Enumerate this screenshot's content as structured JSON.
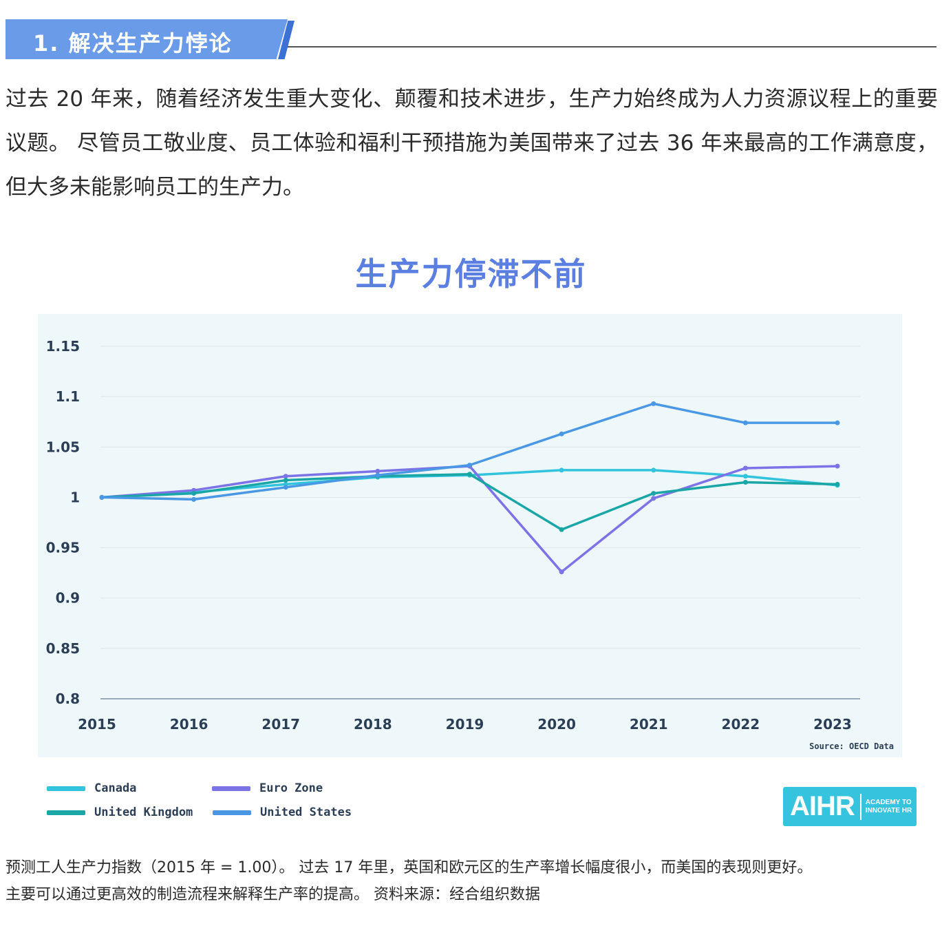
{
  "section": {
    "title": "1. 解决生产力悖论"
  },
  "intro": {
    "text": "过去 20 年来，随着经济发生重大变化、颠覆和技术进步，生产力始终成为人力资源议程上的重要议题。 尽管员工敬业度、员工体验和福利干预措施为美国带来了过去 36 年来最高的工作满意度，但大多未能影响员工的生产力。"
  },
  "chart_data": {
    "type": "line",
    "title": "生产力停滞不前",
    "source": "Source: OECD Data",
    "x": [
      "2015",
      "2016",
      "2017",
      "2018",
      "2019",
      "2020",
      "2021",
      "2022",
      "2023"
    ],
    "yticks": [
      "1.15",
      "1.1",
      "1.05",
      "1",
      "0.95",
      "0.9",
      "0.85",
      "0.8"
    ],
    "ylim": [
      0.8,
      1.15
    ],
    "grid": true,
    "legend_position": "bottom-left",
    "series": [
      {
        "name": "Canada",
        "color": "#33c4dd",
        "values": [
          1.0,
          1.005,
          1.013,
          1.02,
          1.022,
          1.027,
          1.027,
          1.021,
          1.012
        ]
      },
      {
        "name": "Euro Zone",
        "color": "#7b73e6",
        "values": [
          1.0,
          1.007,
          1.021,
          1.026,
          1.031,
          0.926,
          0.999,
          1.029,
          1.031
        ]
      },
      {
        "name": "United Kingdom",
        "color": "#1ba6a6",
        "values": [
          1.0,
          1.004,
          1.017,
          1.021,
          1.023,
          0.968,
          1.004,
          1.015,
          1.013
        ]
      },
      {
        "name": "United States",
        "color": "#4a98e4",
        "values": [
          1.0,
          0.998,
          1.01,
          1.022,
          1.032,
          1.063,
          1.093,
          1.074,
          1.074
        ]
      }
    ]
  },
  "legend": {
    "items": [
      {
        "label": "Canada",
        "color": "#33c4dd"
      },
      {
        "label": "Euro Zone",
        "color": "#7b73e6"
      },
      {
        "label": "United Kingdom",
        "color": "#1ba6a6"
      },
      {
        "label": "United States",
        "color": "#4a98e4"
      }
    ]
  },
  "logo": {
    "main": "AIHR",
    "line1": "ACADEMY TO",
    "line2": "INNOVATE HR"
  },
  "caption": {
    "line1": "预测工人生产力指数（2015 年 = 1.00）。 过去 17 年里，英国和欧元区的生产率增长幅度很小，而美国的表现则更好。",
    "line2": "主要可以通过更高效的制造流程来解释生产率的提高。 资料来源：经合组织数据"
  }
}
